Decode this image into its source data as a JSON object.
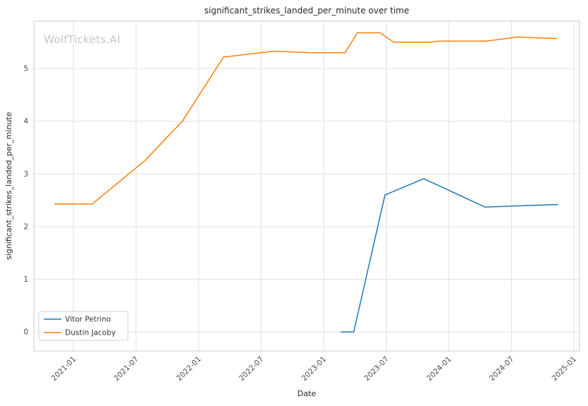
{
  "watermark": "WolfTickets.AI",
  "chart_data": {
    "type": "line",
    "title": "significant_strikes_landed_per_minute over time",
    "xlabel": "Date",
    "ylabel": "significant_strikes_landed_per_minute",
    "x_tick_labels": [
      "2021-01",
      "2021-07",
      "2022-01",
      "2022-07",
      "2023-01",
      "2023-07",
      "2024-01",
      "2024-07",
      "2025-01"
    ],
    "x_tick_values": [
      2021.0,
      2021.5,
      2022.0,
      2022.5,
      2023.0,
      2023.5,
      2024.0,
      2024.5,
      2025.0
    ],
    "y_ticks": [
      0,
      1,
      2,
      3,
      4,
      5
    ],
    "xlim": [
      2020.684,
      2025.045
    ],
    "ylim": [
      -0.36,
      5.9
    ],
    "grid": true,
    "legend_position": "lower left",
    "series": [
      {
        "name": "Vitor Petrino",
        "color": "#1f77b4",
        "dates": [
          "2023-02",
          "2023-04",
          "2023-07",
          "2023-10",
          "2024-04",
          "2024-11"
        ],
        "x": [
          2023.14,
          2023.24,
          2023.49,
          2023.8,
          2024.29,
          2024.87
        ],
        "y": [
          0.0,
          0.0,
          2.6,
          2.91,
          2.37,
          2.42
        ]
      },
      {
        "name": "Dustin Jacoby",
        "color": "#ff7f0e",
        "dates": [
          "2020-11",
          "2021-02",
          "2021-07",
          "2021-11",
          "2022-03",
          "2022-08",
          "2022-12",
          "2023-03",
          "2023-04",
          "2023-06",
          "2023-07",
          "2023-11",
          "2023-12",
          "2024-04",
          "2024-07",
          "2024-11"
        ],
        "x": [
          2020.85,
          2021.15,
          2021.57,
          2021.87,
          2022.2,
          2022.6,
          2022.92,
          2023.17,
          2023.27,
          2023.45,
          2023.56,
          2023.85,
          2023.92,
          2024.3,
          2024.55,
          2024.86
        ],
        "y": [
          2.43,
          2.43,
          3.25,
          4.0,
          5.22,
          5.33,
          5.3,
          5.3,
          5.68,
          5.68,
          5.5,
          5.5,
          5.52,
          5.52,
          5.6,
          5.57
        ]
      }
    ]
  }
}
